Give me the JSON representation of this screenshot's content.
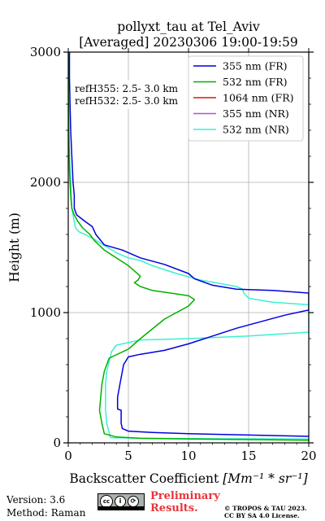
{
  "chart_data": {
    "type": "line",
    "title": "pollyxt_tau at Tel_Aviv",
    "subtitle": "[Averaged] 20230306 19:00-19:59",
    "xlabel_prefix": "Backscatter Coefficient ",
    "xlabel_unit": "[Mm⁻¹ * sr⁻¹]",
    "ylabel": "Height (m)",
    "xlim": [
      0,
      20
    ],
    "ylim": [
      0,
      3000
    ],
    "xticks": [
      0,
      5,
      10,
      15,
      20
    ],
    "yticks": [
      0,
      1000,
      2000,
      3000
    ],
    "xtick_labels": [
      "0",
      "5",
      "10",
      "15",
      "20"
    ],
    "ytick_labels": [
      "0",
      "1000",
      "2000",
      "3000"
    ],
    "grid": true,
    "legend_position": "top-right",
    "annotations": [
      "refH355:  2.5- 3.0 km",
      "refH532:  2.5- 3.0 km"
    ],
    "series": [
      {
        "name": "355 nm (FR)",
        "color": "#0000e0",
        "points": [
          [
            20,
            50
          ],
          [
            15,
            60
          ],
          [
            10,
            70
          ],
          [
            7,
            80
          ],
          [
            5,
            90
          ],
          [
            4.5,
            110
          ],
          [
            4.4,
            150
          ],
          [
            4.4,
            250
          ],
          [
            4.1,
            260
          ],
          [
            4.1,
            350
          ],
          [
            4.3,
            450
          ],
          [
            4.6,
            600
          ],
          [
            5,
            660
          ],
          [
            6,
            680
          ],
          [
            8,
            710
          ],
          [
            10,
            760
          ],
          [
            12,
            820
          ],
          [
            14,
            880
          ],
          [
            16,
            930
          ],
          [
            18,
            980
          ],
          [
            20,
            1020
          ],
          [
            20,
            1150
          ],
          [
            17,
            1170
          ],
          [
            14,
            1180
          ],
          [
            12,
            1210
          ],
          [
            10.5,
            1260
          ],
          [
            10,
            1300
          ],
          [
            8,
            1370
          ],
          [
            6,
            1420
          ],
          [
            4.5,
            1480
          ],
          [
            3,
            1520
          ],
          [
            2.3,
            1600
          ],
          [
            2,
            1660
          ],
          [
            1.4,
            1700
          ],
          [
            0.7,
            1750
          ],
          [
            0.5,
            1800
          ],
          [
            0.5,
            1900
          ],
          [
            0.4,
            2000
          ],
          [
            0.3,
            2200
          ],
          [
            0.2,
            2400
          ],
          [
            0.15,
            2600
          ],
          [
            0.1,
            2800
          ],
          [
            0.1,
            3000
          ]
        ]
      },
      {
        "name": "532 nm (FR)",
        "color": "#00b000",
        "points": [
          [
            20,
            20
          ],
          [
            15,
            25
          ],
          [
            10,
            30
          ],
          [
            6,
            35
          ],
          [
            4,
            45
          ],
          [
            3,
            70
          ],
          [
            2.8,
            150
          ],
          [
            2.6,
            250
          ],
          [
            2.7,
            350
          ],
          [
            2.8,
            450
          ],
          [
            3,
            550
          ],
          [
            3.4,
            650
          ],
          [
            5,
            720
          ],
          [
            6,
            800
          ],
          [
            8,
            950
          ],
          [
            10,
            1050
          ],
          [
            10.5,
            1100
          ],
          [
            10,
            1130
          ],
          [
            7,
            1170
          ],
          [
            6,
            1200
          ],
          [
            5.5,
            1230
          ],
          [
            5.8,
            1250
          ],
          [
            6,
            1280
          ],
          [
            5,
            1360
          ],
          [
            4,
            1420
          ],
          [
            3,
            1480
          ],
          [
            2.2,
            1550
          ],
          [
            1.8,
            1600
          ],
          [
            1.2,
            1650
          ],
          [
            0.8,
            1700
          ],
          [
            0.5,
            1750
          ],
          [
            0.3,
            1800
          ],
          [
            0.2,
            1900
          ],
          [
            0.1,
            2100
          ],
          [
            0.05,
            2400
          ],
          [
            0.02,
            2700
          ],
          [
            0.05,
            3000
          ]
        ]
      },
      {
        "name": "1064 nm (FR)",
        "color": "#e01515",
        "points": []
      },
      {
        "name": "355 nm (NR)",
        "color": "#b050e0",
        "points": []
      },
      {
        "name": "532 nm (NR)",
        "color": "#3cf0d0",
        "points": [
          [
            20,
            30
          ],
          [
            12,
            32
          ],
          [
            6,
            35
          ],
          [
            3.5,
            40
          ],
          [
            3.4,
            80
          ],
          [
            3.2,
            150
          ],
          [
            3.1,
            250
          ],
          [
            3.1,
            350
          ],
          [
            3.1,
            450
          ],
          [
            3.2,
            550
          ],
          [
            3.6,
            700
          ],
          [
            4,
            750
          ],
          [
            6,
            790
          ],
          [
            10,
            800
          ],
          [
            15,
            820
          ],
          [
            20,
            850
          ],
          [
            20,
            1060
          ],
          [
            17,
            1080
          ],
          [
            15,
            1110
          ],
          [
            14.6,
            1150
          ],
          [
            14.5,
            1180
          ],
          [
            14,
            1200
          ],
          [
            11,
            1250
          ],
          [
            9,
            1300
          ],
          [
            7,
            1360
          ],
          [
            6,
            1400
          ],
          [
            5,
            1420
          ],
          [
            4,
            1460
          ],
          [
            3.1,
            1510
          ],
          [
            2.2,
            1560
          ],
          [
            1.4,
            1600
          ],
          [
            0.9,
            1620
          ],
          [
            0.6,
            1650
          ],
          [
            0.5,
            1700
          ],
          [
            0.3,
            1800
          ],
          [
            0.2,
            2000
          ],
          [
            0.1,
            2200
          ],
          [
            0.05,
            2400
          ],
          [
            0.02,
            2600
          ],
          [
            0,
            2800
          ],
          [
            0.05,
            3000
          ]
        ]
      }
    ]
  },
  "footer": {
    "version": "Version: 3.6",
    "method": "Method: Raman",
    "preliminary_line1": "Preliminary",
    "preliminary_line2": "Results.",
    "copyright_line1": "© TROPOS & TAU 2023.",
    "copyright_line2": "CC BY SA 4.0 License."
  },
  "license_badge": {
    "cc": "cc",
    "by": "i",
    "sa": "⟳"
  }
}
